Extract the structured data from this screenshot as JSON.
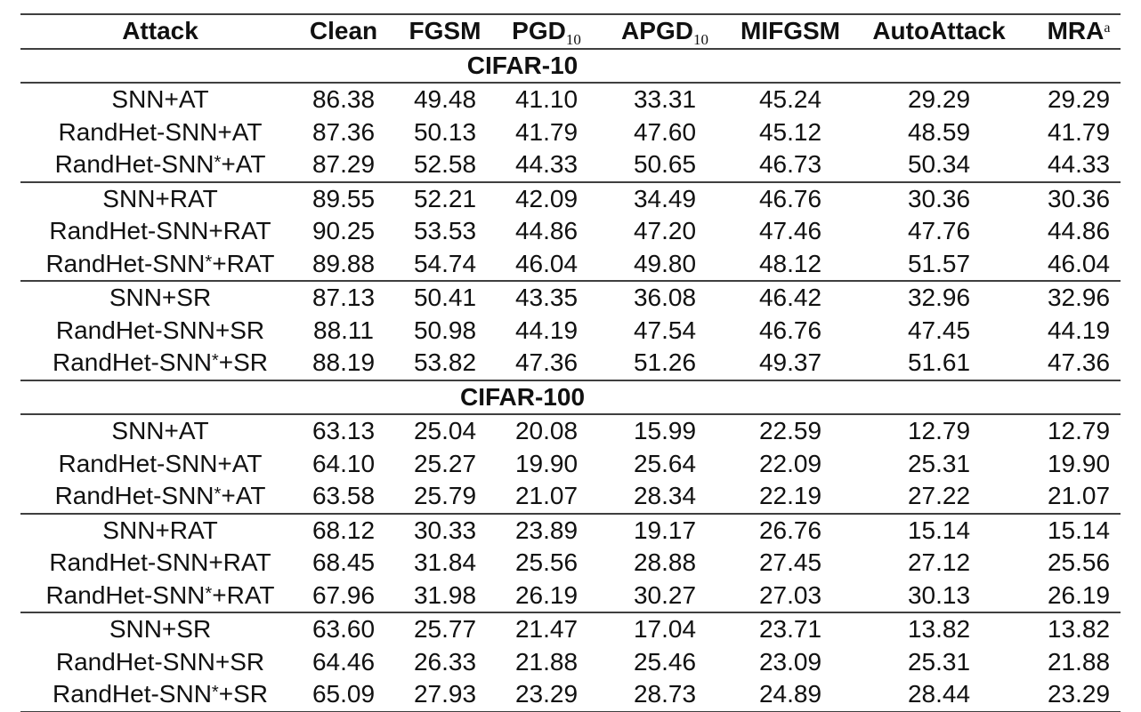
{
  "colors": {
    "background": "#ffffff",
    "text": "#111111",
    "rule": "#3f3f3f"
  },
  "table": {
    "columns": [
      {
        "label": "Attack"
      },
      {
        "label": "Clean"
      },
      {
        "label": "FGSM"
      },
      {
        "label": "PGD",
        "sub": "10"
      },
      {
        "label": "APGD",
        "sub": "10"
      },
      {
        "label": "MIFGSM"
      },
      {
        "label": "AutoAttack"
      },
      {
        "label": "MRA",
        "sup": "a"
      }
    ],
    "sections": [
      {
        "title": "CIFAR-10",
        "groups": [
          {
            "rows": [
              {
                "attack": "SNN+AT",
                "values": [
                  "86.38",
                  "49.48",
                  "41.10",
                  "33.31",
                  "45.24",
                  "29.29",
                  "29.29"
                ],
                "bold": [
                  false,
                  false,
                  false,
                  false,
                  false,
                  false,
                  false
                ]
              },
              {
                "attack": "RandHet-SNN+AT",
                "values": [
                  "87.36",
                  "50.13",
                  "41.79",
                  "47.60",
                  "45.12",
                  "48.59",
                  "41.79"
                ],
                "bold": [
                  true,
                  true,
                  true,
                  true,
                  false,
                  true,
                  true
                ]
              },
              {
                "attack": "RandHet-SNN*+AT",
                "values": [
                  "87.29",
                  "52.58",
                  "44.33",
                  "50.65",
                  "46.73",
                  "50.34",
                  "44.33"
                ],
                "bold": [
                  true,
                  true,
                  true,
                  true,
                  true,
                  true,
                  true
                ]
              }
            ]
          },
          {
            "rows": [
              {
                "attack": "SNN+RAT",
                "values": [
                  "89.55",
                  "52.21",
                  "42.09",
                  "34.49",
                  "46.76",
                  "30.36",
                  "30.36"
                ],
                "bold": [
                  false,
                  false,
                  false,
                  false,
                  false,
                  false,
                  false
                ]
              },
              {
                "attack": "RandHet-SNN+RAT",
                "values": [
                  "90.25",
                  "53.53",
                  "44.86",
                  "47.20",
                  "47.46",
                  "47.76",
                  "44.86"
                ],
                "bold": [
                  true,
                  true,
                  true,
                  true,
                  true,
                  true,
                  true
                ]
              },
              {
                "attack": "RandHet-SNN*+RAT",
                "values": [
                  "89.88",
                  "54.74",
                  "46.04",
                  "49.80",
                  "48.12",
                  "51.57",
                  "46.04"
                ],
                "bold": [
                  true,
                  true,
                  true,
                  true,
                  true,
                  true,
                  true
                ]
              }
            ]
          },
          {
            "rows": [
              {
                "attack": "SNN+SR",
                "values": [
                  "87.13",
                  "50.41",
                  "43.35",
                  "36.08",
                  "46.42",
                  "32.96",
                  "32.96"
                ],
                "bold": [
                  false,
                  false,
                  false,
                  false,
                  false,
                  false,
                  false
                ]
              },
              {
                "attack": "RandHet-SNN+SR",
                "values": [
                  "88.11",
                  "50.98",
                  "44.19",
                  "47.54",
                  "46.76",
                  "47.45",
                  "44.19"
                ],
                "bold": [
                  true,
                  true,
                  true,
                  true,
                  true,
                  true,
                  true
                ]
              },
              {
                "attack": "RandHet-SNN*+SR",
                "values": [
                  "88.19",
                  "53.82",
                  "47.36",
                  "51.26",
                  "49.37",
                  "51.61",
                  "47.36"
                ],
                "bold": [
                  true,
                  true,
                  true,
                  true,
                  true,
                  true,
                  true
                ]
              }
            ]
          }
        ]
      },
      {
        "title": "CIFAR-100",
        "groups": [
          {
            "rows": [
              {
                "attack": "SNN+AT",
                "values": [
                  "63.13",
                  "25.04",
                  "20.08",
                  "15.99",
                  "22.59",
                  "12.79",
                  "12.79"
                ],
                "bold": [
                  false,
                  false,
                  false,
                  false,
                  false,
                  false,
                  false
                ]
              },
              {
                "attack": "RandHet-SNN+AT",
                "values": [
                  "64.10",
                  "25.27",
                  "19.90",
                  "25.64",
                  "22.09",
                  "25.31",
                  "19.90"
                ],
                "bold": [
                  true,
                  true,
                  false,
                  true,
                  false,
                  true,
                  true
                ]
              },
              {
                "attack": "RandHet-SNN*+AT",
                "values": [
                  "63.58",
                  "25.79",
                  "21.07",
                  "28.34",
                  "22.19",
                  "27.22",
                  "21.07"
                ],
                "bold": [
                  true,
                  true,
                  true,
                  true,
                  false,
                  true,
                  true
                ]
              }
            ]
          },
          {
            "rows": [
              {
                "attack": "SNN+RAT",
                "values": [
                  "68.12",
                  "30.33",
                  "23.89",
                  "19.17",
                  "26.76",
                  "15.14",
                  "15.14"
                ],
                "bold": [
                  false,
                  false,
                  false,
                  false,
                  false,
                  false,
                  false
                ]
              },
              {
                "attack": "RandHet-SNN+RAT",
                "values": [
                  "68.45",
                  "31.84",
                  "25.56",
                  "28.88",
                  "27.45",
                  "27.12",
                  "25.56"
                ],
                "bold": [
                  true,
                  true,
                  true,
                  true,
                  true,
                  true,
                  true
                ]
              },
              {
                "attack": "RandHet-SNN*+RAT",
                "values": [
                  "67.96",
                  "31.98",
                  "26.19",
                  "30.27",
                  "27.03",
                  "30.13",
                  "26.19"
                ],
                "bold": [
                  false,
                  true,
                  true,
                  true,
                  true,
                  true,
                  true
                ]
              }
            ]
          },
          {
            "rows": [
              {
                "attack": "SNN+SR",
                "values": [
                  "63.60",
                  "25.77",
                  "21.47",
                  "17.04",
                  "23.71",
                  "13.82",
                  "13.82"
                ],
                "bold": [
                  false,
                  false,
                  false,
                  false,
                  false,
                  false,
                  false
                ]
              },
              {
                "attack": "RandHet-SNN+SR",
                "values": [
                  "64.46",
                  "26.33",
                  "21.88",
                  "25.46",
                  "23.09",
                  "25.31",
                  "21.88"
                ],
                "bold": [
                  true,
                  true,
                  true,
                  true,
                  false,
                  true,
                  true
                ]
              },
              {
                "attack": "RandHet-SNN*+SR",
                "values": [
                  "65.09",
                  "27.93",
                  "23.29",
                  "28.73",
                  "24.89",
                  "28.44",
                  "23.29"
                ],
                "bold": [
                  true,
                  true,
                  true,
                  true,
                  true,
                  true,
                  true
                ]
              }
            ]
          }
        ]
      }
    ]
  }
}
